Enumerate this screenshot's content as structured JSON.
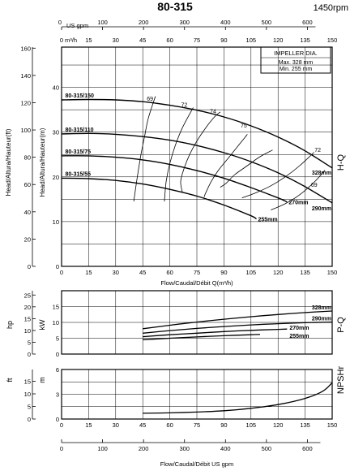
{
  "header": {
    "title": "80-315",
    "speed": "1450rpm"
  },
  "axes": {
    "gpm_label": "US gpm",
    "m3h_label": "m³/h",
    "gpm_ticks": [
      0,
      100,
      200,
      300,
      400,
      500,
      600
    ],
    "m3h_ticks": [
      0,
      15,
      30,
      45,
      60,
      75,
      90,
      105,
      120,
      135,
      150
    ],
    "flow_label": "Flow/Caudal/Débit Q(m³/h)",
    "flow_label_bottom": "Flow/Caudal/Débit  US gpm",
    "hq_ft_ticks": [
      0,
      20,
      40,
      60,
      80,
      100,
      120,
      140,
      160
    ],
    "hq_m_ticks": [
      0,
      10,
      20,
      30,
      40
    ],
    "hq_ylabel": "Head/Altura/Hauteur(ft)",
    "hq_ylabel_m": "Head/Altura/Hauteur(m)",
    "hq_side": "H-Q",
    "pq_hp_ticks": [
      0,
      5,
      10,
      15,
      20,
      25
    ],
    "pq_kw_ticks": [
      0,
      5,
      10,
      15
    ],
    "hp_label": "hp",
    "kw_label": "kW",
    "pq_side": "P-Q",
    "npsh_ft_ticks": [
      0,
      5,
      10,
      15
    ],
    "npsh_m_ticks": [
      0,
      3,
      6
    ],
    "ft_label": "ft",
    "m_label": "m",
    "npsh_side": "NPSHr"
  },
  "impeller_box": {
    "title": "IMPELLER DIA.",
    "max": "Max.  328 mm",
    "min": "Min.  255 mm"
  },
  "chart_data": [
    {
      "type": "line",
      "title": "H-Q",
      "xlabel": "Flow/Caudal/Débit Q(m³/h)",
      "ylabel": "Head/Altura/Hauteur(m)",
      "xlim": [
        0,
        150
      ],
      "ylim": [
        0,
        49
      ],
      "series": [
        {
          "name": "80-315/150",
          "end_label": "328mm",
          "x": [
            0,
            15,
            30,
            45,
            60,
            75,
            90,
            105,
            120,
            135,
            150
          ],
          "y": [
            37.2,
            37.3,
            37.2,
            36.8,
            36.0,
            34.9,
            33.4,
            31.4,
            28.9,
            25.8,
            22.0
          ]
        },
        {
          "name": "80-315/110",
          "end_label": "290mm",
          "x": [
            0,
            15,
            30,
            45,
            60,
            75,
            90,
            105,
            120,
            135,
            150
          ],
          "y": [
            29.6,
            29.7,
            29.5,
            29.0,
            28.2,
            27.0,
            25.4,
            23.4,
            20.9,
            17.8,
            14.2
          ]
        },
        {
          "name": "80-315/75",
          "end_label": "270mm",
          "x": [
            0,
            15,
            30,
            45,
            60,
            75,
            90,
            105,
            120,
            125
          ],
          "y": [
            24.7,
            24.7,
            24.4,
            23.8,
            22.8,
            21.4,
            19.7,
            17.6,
            15.3,
            14.4
          ]
        },
        {
          "name": "80-315/55",
          "end_label": "255mm",
          "x": [
            0,
            15,
            30,
            45,
            60,
            75,
            90,
            105,
            108
          ],
          "y": [
            19.7,
            19.6,
            19.2,
            18.4,
            17.2,
            15.7,
            13.7,
            11.3,
            10.6
          ]
        }
      ],
      "efficiency": [
        {
          "label": "69",
          "x": [
            40,
            42,
            44,
            46,
            48,
            52
          ],
          "y": [
            14.5,
            20.0,
            25.0,
            29.0,
            33.0,
            38.0
          ]
        },
        {
          "label": "72",
          "x": [
            57,
            58,
            60,
            63,
            67,
            73
          ],
          "y": [
            14.5,
            19.0,
            23.0,
            27.0,
            31.0,
            35.5
          ]
        },
        {
          "label": "74",
          "x": [
            67,
            66,
            68,
            71,
            75,
            80,
            85,
            88
          ],
          "y": [
            16.5,
            19.0,
            22.0,
            25.0,
            28.0,
            31.0,
            33.5,
            34.5
          ]
        },
        {
          "label": "75",
          "x": [
            79,
            80,
            83,
            87,
            92,
            97,
            101,
            103
          ],
          "y": [
            15.5,
            16.5,
            19.0,
            21.5,
            24.0,
            26.5,
            28.5,
            29.5
          ]
        },
        {
          "label": "74",
          "x": [
            88,
            91,
            96,
            103,
            110,
            117
          ],
          "y": [
            17.7,
            18.5,
            20.5,
            22.5,
            24.5,
            26.0
          ]
        },
        {
          "label": "72",
          "x": [
            100,
            108,
            116,
            124,
            132,
            140
          ],
          "y": [
            15.3,
            16.5,
            18.0,
            20.0,
            22.5,
            25.5
          ]
        },
        {
          "label": "69",
          "x": [
            116,
            124,
            132,
            140,
            146
          ],
          "y": [
            12.6,
            14.0,
            16.0,
            18.8,
            21.5
          ]
        }
      ],
      "eff_labels": [
        {
          "text": "69",
          "x": 49,
          "y": 37.0
        },
        {
          "text": "72",
          "x": 68,
          "y": 35.7
        },
        {
          "text": "74",
          "x": 84,
          "y": 34.2
        },
        {
          "text": "75",
          "x": 101,
          "y": 31.0
        },
        {
          "text": "72",
          "x": 142,
          "y": 25.6
        },
        {
          "text": "69",
          "x": 140,
          "y": 17.8
        }
      ]
    },
    {
      "type": "line",
      "title": "P-Q",
      "ylabel": "kW",
      "xlim": [
        0,
        150
      ],
      "ylim": [
        0,
        20
      ],
      "series": [
        {
          "name": "328mm",
          "x": [
            45,
            60,
            75,
            90,
            105,
            120,
            135,
            150
          ],
          "y": [
            8.0,
            9.1,
            10.1,
            11.0,
            11.8,
            12.5,
            13.1,
            13.6
          ]
        },
        {
          "name": "290mm",
          "x": [
            45,
            60,
            75,
            90,
            105,
            120,
            135,
            150
          ],
          "y": [
            6.6,
            7.4,
            8.1,
            8.7,
            9.2,
            9.6,
            9.9,
            10.1
          ]
        },
        {
          "name": "270mm",
          "x": [
            45,
            60,
            75,
            90,
            105,
            120,
            125
          ],
          "y": [
            5.5,
            6.1,
            6.6,
            7.1,
            7.5,
            7.8,
            7.9
          ]
        },
        {
          "name": "255mm",
          "x": [
            45,
            60,
            75,
            90,
            105,
            110
          ],
          "y": [
            4.5,
            5.0,
            5.4,
            5.8,
            6.1,
            6.2
          ]
        }
      ]
    },
    {
      "type": "line",
      "title": "NPSHr",
      "ylabel": "m",
      "xlim": [
        0,
        150
      ],
      "ylim": [
        0,
        6
      ],
      "series": [
        {
          "name": "NPSHr",
          "x": [
            45,
            60,
            75,
            90,
            105,
            120,
            135,
            145,
            150
          ],
          "y": [
            0.7,
            0.75,
            0.85,
            1.0,
            1.3,
            1.75,
            2.5,
            3.4,
            4.4
          ]
        }
      ]
    }
  ]
}
